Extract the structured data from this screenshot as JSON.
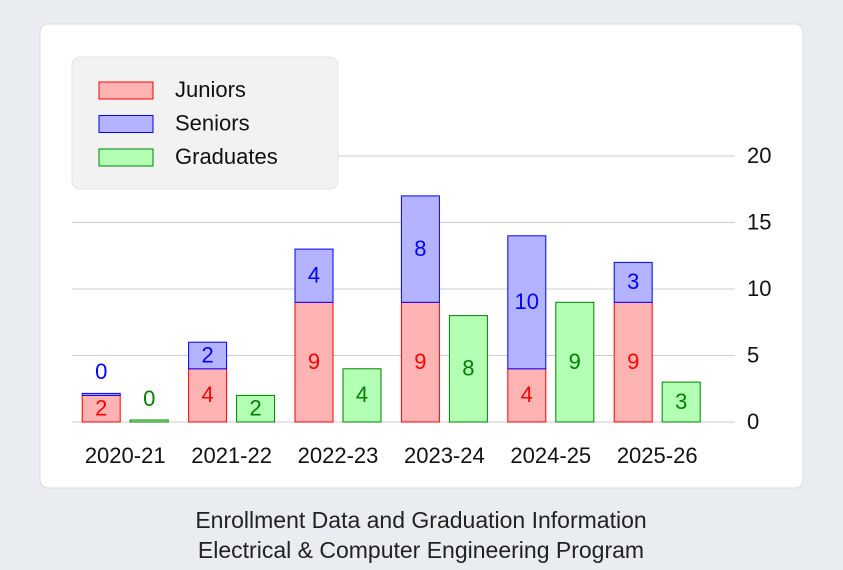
{
  "chart_data": {
    "type": "bar",
    "title": "Enrollment Data and Graduation Information",
    "subtitle": "Electrical & Computer Engineering Program",
    "categories": [
      "2020-21",
      "2021-22",
      "2022-23",
      "2023-24",
      "2024-25",
      "2025-26"
    ],
    "series": [
      {
        "name": "Juniors",
        "color": "#ffb3b3",
        "edge_color": "#ff0000",
        "stack": 0,
        "values": [
          2,
          4,
          9,
          9,
          4,
          9
        ]
      },
      {
        "name": "Seniors",
        "color": "#b3b3ff",
        "edge_color": "#0000ff",
        "stack": 0,
        "values": [
          0,
          2,
          4,
          8,
          10,
          3
        ]
      },
      {
        "name": "Graduates",
        "color": "#b3ffb3",
        "edge_color": "#008000",
        "stack": 1,
        "values": [
          0,
          2,
          4,
          8,
          9,
          3
        ]
      }
    ],
    "ylim": [
      0,
      20
    ],
    "yticks": [
      0,
      5,
      10,
      15,
      20
    ],
    "y_axis_side": "right",
    "grid": true,
    "legend": "upper left"
  }
}
